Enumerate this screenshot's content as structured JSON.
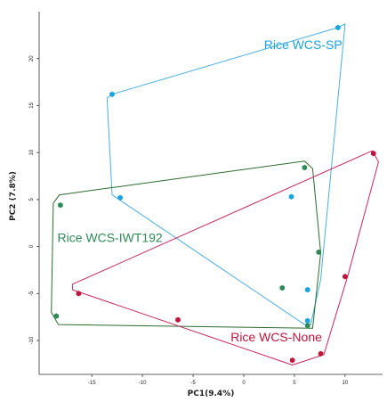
{
  "chart_data": {
    "type": "scatter",
    "title": "",
    "xlabel": "PC1(9.4%)",
    "ylabel": "PC2 (7.8%)",
    "xlim": [
      -20.2,
      13.7
    ],
    "ylim": [
      -13.6,
      25.0
    ],
    "x_ticks": [
      -15,
      -10,
      -5,
      0,
      5,
      10
    ],
    "y_ticks": [
      -10,
      -5,
      0,
      5,
      10,
      15,
      20
    ],
    "x_tick_labels": [
      "-15",
      "-10",
      "-5",
      "0",
      "5",
      "10"
    ],
    "y_tick_labels": [
      "-10",
      "-5",
      "0",
      "5",
      "10",
      "15",
      "20"
    ],
    "grid": false,
    "hull_polygons": true,
    "series": [
      {
        "name": "Rice WCS-SP",
        "color": "#1ba3e0",
        "hull_color": "#4aaee0",
        "points": [
          {
            "x": 9.3,
            "y": 23.3
          },
          {
            "x": -13.0,
            "y": 16.2
          },
          {
            "x": -12.2,
            "y": 5.2
          },
          {
            "x": 4.7,
            "y": 5.3
          },
          {
            "x": 6.3,
            "y": -4.6
          },
          {
            "x": 6.3,
            "y": -7.9
          }
        ],
        "hull": [
          [
            9.3,
            23.3
          ],
          [
            -13.0,
            16.2
          ],
          [
            -13.5,
            15.8
          ],
          [
            -13.0,
            5.5
          ],
          [
            6.0,
            -8.3
          ],
          [
            6.6,
            -8.3
          ],
          [
            7.6,
            -3.5
          ],
          [
            10.0,
            23.7
          ]
        ]
      },
      {
        "name": "Rice WCS-IWT192",
        "color": "#2e8b57",
        "hull_color": "#2f6b2f",
        "points": [
          {
            "x": -18.1,
            "y": 4.4
          },
          {
            "x": 6.0,
            "y": 8.4
          },
          {
            "x": 7.4,
            "y": -0.6
          },
          {
            "x": 3.8,
            "y": -4.4
          },
          {
            "x": 6.3,
            "y": -8.4
          },
          {
            "x": -18.5,
            "y": -7.4
          }
        ],
        "hull": [
          [
            -18.2,
            5.5
          ],
          [
            6.0,
            9.1
          ],
          [
            6.8,
            8.3
          ],
          [
            7.6,
            -0.7
          ],
          [
            6.8,
            -8.7
          ],
          [
            -18.3,
            -8.3
          ],
          [
            -19.0,
            -7.0
          ],
          [
            -18.8,
            4.6
          ]
        ]
      },
      {
        "name": "Rice WCS-None",
        "color": "#c0143c",
        "hull_color": "#c8285f",
        "points": [
          {
            "x": 12.8,
            "y": 9.9
          },
          {
            "x": -16.3,
            "y": -5.0
          },
          {
            "x": -6.5,
            "y": -7.8
          },
          {
            "x": 10.0,
            "y": -3.2
          },
          {
            "x": 7.6,
            "y": -11.4
          },
          {
            "x": 4.8,
            "y": -12.1
          }
        ],
        "hull": [
          [
            12.7,
            10.2
          ],
          [
            13.3,
            9.0
          ],
          [
            10.3,
            -3.0
          ],
          [
            7.9,
            -11.5
          ],
          [
            4.8,
            -12.6
          ],
          [
            -16.9,
            -4.6
          ],
          [
            -16.9,
            -4.0
          ]
        ]
      }
    ],
    "annotations": [
      {
        "text": "Rice WCS-SP",
        "x": 2.0,
        "y": 21.0,
        "color": "#1ba3e0"
      },
      {
        "text": "Rice WCS-IWT192",
        "x": -18.4,
        "y": 0.5,
        "color": "#2e8b57"
      },
      {
        "text": "Rice WCS-None",
        "x": -1.3,
        "y": -10.1,
        "color": "#c0143c"
      }
    ]
  }
}
